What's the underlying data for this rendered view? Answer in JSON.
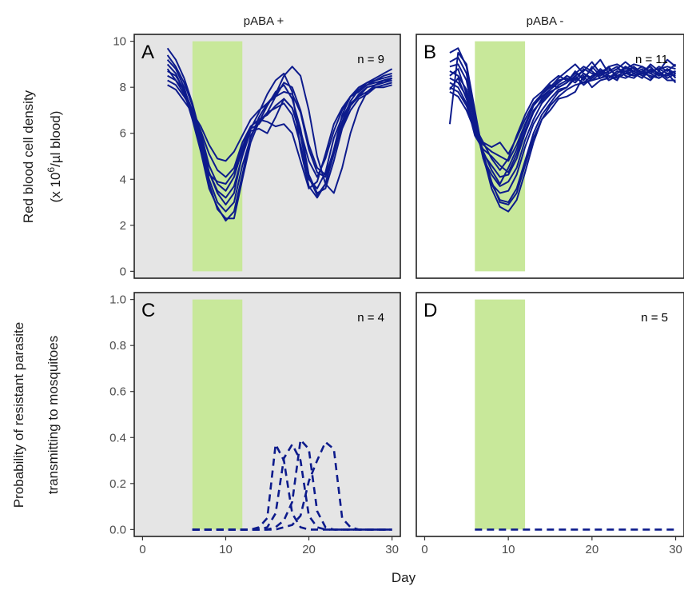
{
  "figure": {
    "xlabel": "Day",
    "ylabel_top_line1": "Red blood cell density",
    "ylabel_top_line2": "(x 10^6/µl blood)",
    "ylabel_bottom_line1": "Probability of resistant parasite",
    "ylabel_bottom_line2": "transmitting to mosquitoes",
    "strip_left": "pABA +",
    "strip_right": "pABA -"
  },
  "colors": {
    "line": "#0d1b8c",
    "treatment": "#c8e89a",
    "panel_bg_grey": "#e5e5e5",
    "panel_bg_white": "#ffffff"
  },
  "chart_data": [
    {
      "type": "line",
      "panel": "A",
      "label": "A",
      "n_label": "n = 9",
      "facet": "pABA +",
      "ylabel": "Red blood cell density (x 10^6/µl blood)",
      "xlim": [
        -1,
        31
      ],
      "ylim": [
        -0.3,
        10.3
      ],
      "xticks": [
        0,
        10,
        20,
        30
      ],
      "yticks": [
        0,
        2,
        4,
        6,
        8,
        10
      ],
      "background": "grey",
      "shade": [
        6,
        12
      ],
      "x": [
        3,
        4,
        5,
        6,
        7,
        8,
        9,
        10,
        11,
        12,
        13,
        14,
        15,
        16,
        17,
        18,
        19,
        20,
        21,
        22,
        23,
        24,
        25,
        26,
        27,
        28,
        29,
        30
      ],
      "series": [
        {
          "values": [
            9.7,
            9.2,
            8.4,
            7.3,
            5.9,
            4.3,
            3.4,
            2.9,
            3.4,
            5.1,
            6.2,
            6.9,
            7.7,
            8.3,
            8.6,
            7.8,
            5.3,
            3.7,
            3.2,
            3.8,
            5.3,
            6.3,
            7.2,
            7.7,
            8.0,
            8.1,
            8.2,
            8.4
          ]
        },
        {
          "values": [
            9.4,
            8.9,
            8.2,
            7.2,
            5.7,
            4.0,
            3.0,
            2.6,
            3.0,
            4.6,
            5.8,
            6.7,
            7.3,
            7.7,
            8.5,
            8.9,
            8.5,
            7.0,
            5.0,
            3.8,
            3.4,
            4.5,
            6.0,
            7.1,
            7.8,
            8.1,
            8.2,
            8.3
          ]
        },
        {
          "values": [
            9.2,
            8.8,
            8.0,
            6.8,
            5.4,
            3.8,
            2.7,
            2.3,
            2.3,
            4.0,
            5.6,
            6.5,
            7.2,
            7.8,
            8.1,
            7.5,
            6.2,
            4.2,
            3.4,
            3.6,
            4.8,
            6.2,
            7.0,
            7.5,
            7.7,
            8.0,
            8.0,
            8.1
          ]
        },
        {
          "values": [
            9.0,
            8.6,
            7.8,
            6.6,
            5.2,
            3.6,
            2.8,
            2.2,
            2.6,
            4.2,
            5.9,
            6.5,
            6.9,
            7.1,
            7.3,
            6.8,
            5.5,
            4.0,
            3.6,
            4.3,
            5.8,
            6.7,
            7.3,
            7.6,
            7.8,
            8.0,
            8.1,
            8.2
          ]
        },
        {
          "values": [
            8.8,
            8.3,
            7.9,
            6.9,
            5.6,
            4.3,
            3.5,
            3.2,
            3.7,
            5.0,
            6.1,
            6.2,
            6.0,
            6.7,
            7.5,
            7.1,
            6.1,
            4.8,
            4.1,
            4.9,
            6.1,
            7.0,
            7.6,
            7.9,
            8.1,
            8.3,
            8.4,
            8.5
          ]
        },
        {
          "values": [
            8.7,
            8.5,
            7.9,
            7.0,
            6.0,
            4.6,
            3.8,
            3.5,
            4.1,
            5.3,
            6.2,
            6.4,
            6.9,
            7.6,
            8.2,
            8.0,
            7.0,
            5.5,
            4.5,
            4.2,
            5.2,
            6.5,
            7.4,
            7.9,
            8.2,
            8.4,
            8.6,
            8.8
          ]
        },
        {
          "values": [
            8.5,
            8.3,
            7.7,
            6.8,
            5.5,
            4.2,
            3.9,
            3.8,
            4.3,
            5.4,
            6.3,
            6.6,
            6.5,
            6.3,
            6.4,
            6.0,
            4.8,
            3.6,
            3.9,
            5.1,
            6.4,
            7.1,
            7.6,
            7.8,
            8.1,
            8.2,
            8.3,
            8.4
          ]
        },
        {
          "values": [
            8.3,
            8.1,
            7.6,
            7.0,
            6.1,
            5.1,
            4.4,
            4.1,
            4.5,
            5.6,
            6.3,
            6.6,
            6.8,
            7.2,
            7.5,
            7.1,
            5.9,
            4.1,
            3.3,
            3.8,
            5.1,
            6.4,
            7.2,
            7.6,
            8.0,
            8.1,
            8.3,
            8.4
          ]
        },
        {
          "values": [
            8.1,
            7.9,
            7.4,
            6.9,
            6.3,
            5.5,
            4.9,
            4.8,
            5.2,
            5.9,
            6.6,
            7.0,
            7.3,
            7.6,
            7.8,
            7.7,
            6.9,
            5.3,
            4.3,
            4.1,
            5.3,
            6.8,
            7.6,
            8.0,
            8.2,
            8.3,
            8.5,
            8.6
          ]
        }
      ]
    },
    {
      "type": "line",
      "panel": "B",
      "label": "B",
      "n_label": "n = 11",
      "facet": "pABA -",
      "xlim": [
        -1,
        31
      ],
      "ylim": [
        -0.3,
        10.3
      ],
      "xticks": [
        0,
        10,
        20,
        30
      ],
      "background": "white",
      "shade": [
        6,
        12
      ],
      "x": [
        3,
        4,
        5,
        6,
        7,
        8,
        9,
        10,
        11,
        12,
        13,
        14,
        15,
        16,
        17,
        18,
        19,
        20,
        21,
        22,
        23,
        24,
        25,
        26,
        27,
        28,
        29,
        30
      ],
      "series": [
        {
          "values": [
            6.4,
            9.5,
            9.0,
            7.0,
            5.0,
            3.6,
            2.8,
            2.6,
            3.1,
            4.3,
            5.6,
            6.6,
            7.2,
            7.6,
            7.9,
            8.1,
            8.2,
            8.3,
            8.4,
            8.5,
            8.4,
            8.6,
            8.5,
            8.6,
            8.5,
            8.4,
            8.6,
            8.5
          ]
        },
        {
          "values": [
            9.5,
            9.7,
            8.9,
            6.9,
            5.1,
            3.9,
            3.0,
            2.9,
            3.4,
            4.6,
            5.8,
            6.6,
            7.0,
            7.5,
            7.6,
            7.8,
            8.5,
            8.0,
            8.3,
            8.4,
            8.6,
            8.9,
            8.7,
            8.5,
            8.7,
            8.8,
            8.6,
            8.7
          ]
        },
        {
          "values": [
            9.1,
            9.3,
            8.6,
            6.6,
            4.9,
            3.8,
            3.1,
            3.0,
            3.6,
            4.8,
            6.0,
            6.8,
            7.3,
            7.8,
            8.0,
            8.5,
            8.7,
            9.1,
            8.6,
            8.9,
            9.0,
            8.8,
            9.0,
            8.9,
            8.7,
            8.8,
            8.9,
            8.8
          ]
        },
        {
          "values": [
            8.9,
            9.0,
            8.3,
            6.4,
            5.0,
            3.8,
            3.4,
            3.5,
            4.2,
            5.4,
            6.4,
            7.0,
            7.5,
            7.9,
            8.0,
            8.4,
            8.2,
            8.5,
            8.7,
            8.8,
            8.5,
            8.7,
            8.9,
            8.6,
            8.7,
            8.5,
            8.8,
            8.6
          ]
        },
        {
          "values": [
            8.7,
            8.5,
            7.9,
            6.5,
            4.9,
            4.2,
            3.7,
            3.9,
            4.5,
            5.7,
            6.6,
            7.3,
            7.7,
            8.1,
            8.3,
            8.6,
            8.4,
            8.8,
            9.2,
            8.6,
            8.8,
            9.1,
            8.8,
            8.6,
            9.0,
            8.7,
            9.2,
            8.9
          ]
        },
        {
          "values": [
            8.5,
            8.8,
            7.7,
            6.2,
            5.1,
            4.6,
            4.1,
            4.2,
            4.9,
            6.0,
            6.9,
            7.5,
            7.9,
            8.2,
            8.5,
            8.3,
            8.8,
            8.6,
            8.5,
            8.9,
            8.4,
            8.6,
            8.7,
            8.9,
            8.6,
            8.9,
            8.7,
            9.0
          ]
        },
        {
          "values": [
            8.4,
            8.2,
            7.6,
            6.0,
            5.2,
            4.4,
            3.8,
            4.5,
            5.3,
            6.3,
            7.2,
            7.7,
            8.0,
            8.4,
            8.7,
            9.0,
            8.6,
            8.4,
            8.7,
            8.3,
            8.5,
            8.4,
            8.6,
            8.8,
            8.4,
            8.6,
            8.5,
            8.7
          ]
        },
        {
          "values": [
            8.2,
            8.0,
            7.3,
            5.9,
            5.3,
            5.0,
            4.6,
            4.3,
            5.1,
            6.1,
            7.0,
            7.4,
            7.8,
            8.0,
            8.2,
            8.7,
            8.3,
            8.9,
            8.5,
            8.7,
            8.9,
            8.5,
            8.4,
            8.7,
            8.9,
            8.5,
            8.8,
            8.4
          ]
        },
        {
          "values": [
            8.0,
            7.8,
            7.2,
            6.2,
            5.5,
            5.2,
            5.0,
            4.8,
            5.5,
            6.4,
            7.2,
            7.6,
            7.9,
            8.3,
            8.4,
            8.2,
            8.6,
            8.3,
            8.6,
            8.4,
            8.7,
            8.6,
            8.9,
            8.5,
            8.3,
            8.7,
            8.4,
            8.6
          ]
        },
        {
          "values": [
            7.9,
            8.4,
            7.5,
            6.3,
            5.6,
            5.4,
            5.6,
            5.1,
            5.8,
            6.6,
            7.3,
            7.7,
            8.1,
            8.0,
            8.2,
            8.5,
            8.1,
            8.4,
            8.8,
            8.5,
            8.3,
            8.9,
            8.6,
            8.4,
            8.8,
            8.6,
            8.3,
            8.3
          ]
        },
        {
          "values": [
            7.8,
            7.6,
            7.0,
            6.1,
            5.6,
            4.9,
            4.4,
            4.9,
            5.9,
            6.8,
            7.5,
            7.8,
            8.2,
            8.5,
            8.3,
            8.6,
            8.9,
            8.7,
            8.4,
            8.6,
            8.8,
            8.7,
            8.5,
            8.7,
            8.6,
            8.4,
            8.6,
            8.2
          ]
        }
      ]
    },
    {
      "type": "line",
      "panel": "C",
      "label": "C",
      "n_label": "n = 4",
      "facet": "pABA +",
      "ylabel": "Probability of resistant parasite transmitting to mosquitoes",
      "xlabel": "Day",
      "line_style": "dashed",
      "xlim": [
        -1,
        31
      ],
      "ylim": [
        -0.03,
        1.03
      ],
      "xticks": [
        0,
        10,
        20,
        30
      ],
      "yticks": [
        0.0,
        0.2,
        0.4,
        0.6,
        0.8,
        1.0
      ],
      "background": "grey",
      "shade": [
        6,
        12
      ],
      "x": [
        6,
        7,
        8,
        9,
        10,
        11,
        12,
        13,
        14,
        15,
        16,
        17,
        18,
        19,
        20,
        21,
        22,
        23,
        24,
        25,
        26,
        27,
        28,
        29,
        30
      ],
      "series": [
        {
          "values": [
            0,
            0,
            0,
            0,
            0,
            0,
            0,
            0,
            0.01,
            0.05,
            0.37,
            0.3,
            0.07,
            0.01,
            0,
            0,
            0,
            0,
            0,
            0,
            0,
            0,
            0,
            0,
            0
          ]
        },
        {
          "values": [
            0,
            0,
            0,
            0,
            0,
            0,
            0,
            0,
            0,
            0.01,
            0.07,
            0.31,
            0.37,
            0.3,
            0.06,
            0.01,
            0,
            0,
            0,
            0,
            0,
            0,
            0,
            0,
            0
          ]
        },
        {
          "values": [
            0,
            0,
            0,
            0,
            0,
            0,
            0,
            0,
            0,
            0,
            0.01,
            0.04,
            0.12,
            0.39,
            0.35,
            0.08,
            0.01,
            0,
            0,
            0,
            0,
            0,
            0,
            0,
            0
          ]
        },
        {
          "values": [
            0,
            0,
            0,
            0,
            0,
            0,
            0,
            0,
            0,
            0,
            0,
            0.01,
            0.02,
            0.06,
            0.21,
            0.3,
            0.38,
            0.35,
            0.05,
            0.01,
            0,
            0,
            0,
            0,
            0
          ]
        }
      ]
    },
    {
      "type": "line",
      "panel": "D",
      "label": "D",
      "n_label": "n = 5",
      "facet": "pABA -",
      "xlabel": "Day",
      "line_style": "dashed",
      "xlim": [
        -1,
        31
      ],
      "ylim": [
        -0.03,
        1.03
      ],
      "xticks": [
        0,
        10,
        20,
        30
      ],
      "background": "white",
      "shade": [
        6,
        12
      ],
      "x": [
        6,
        30
      ],
      "series": [
        {
          "values": [
            0,
            0
          ]
        }
      ]
    }
  ]
}
